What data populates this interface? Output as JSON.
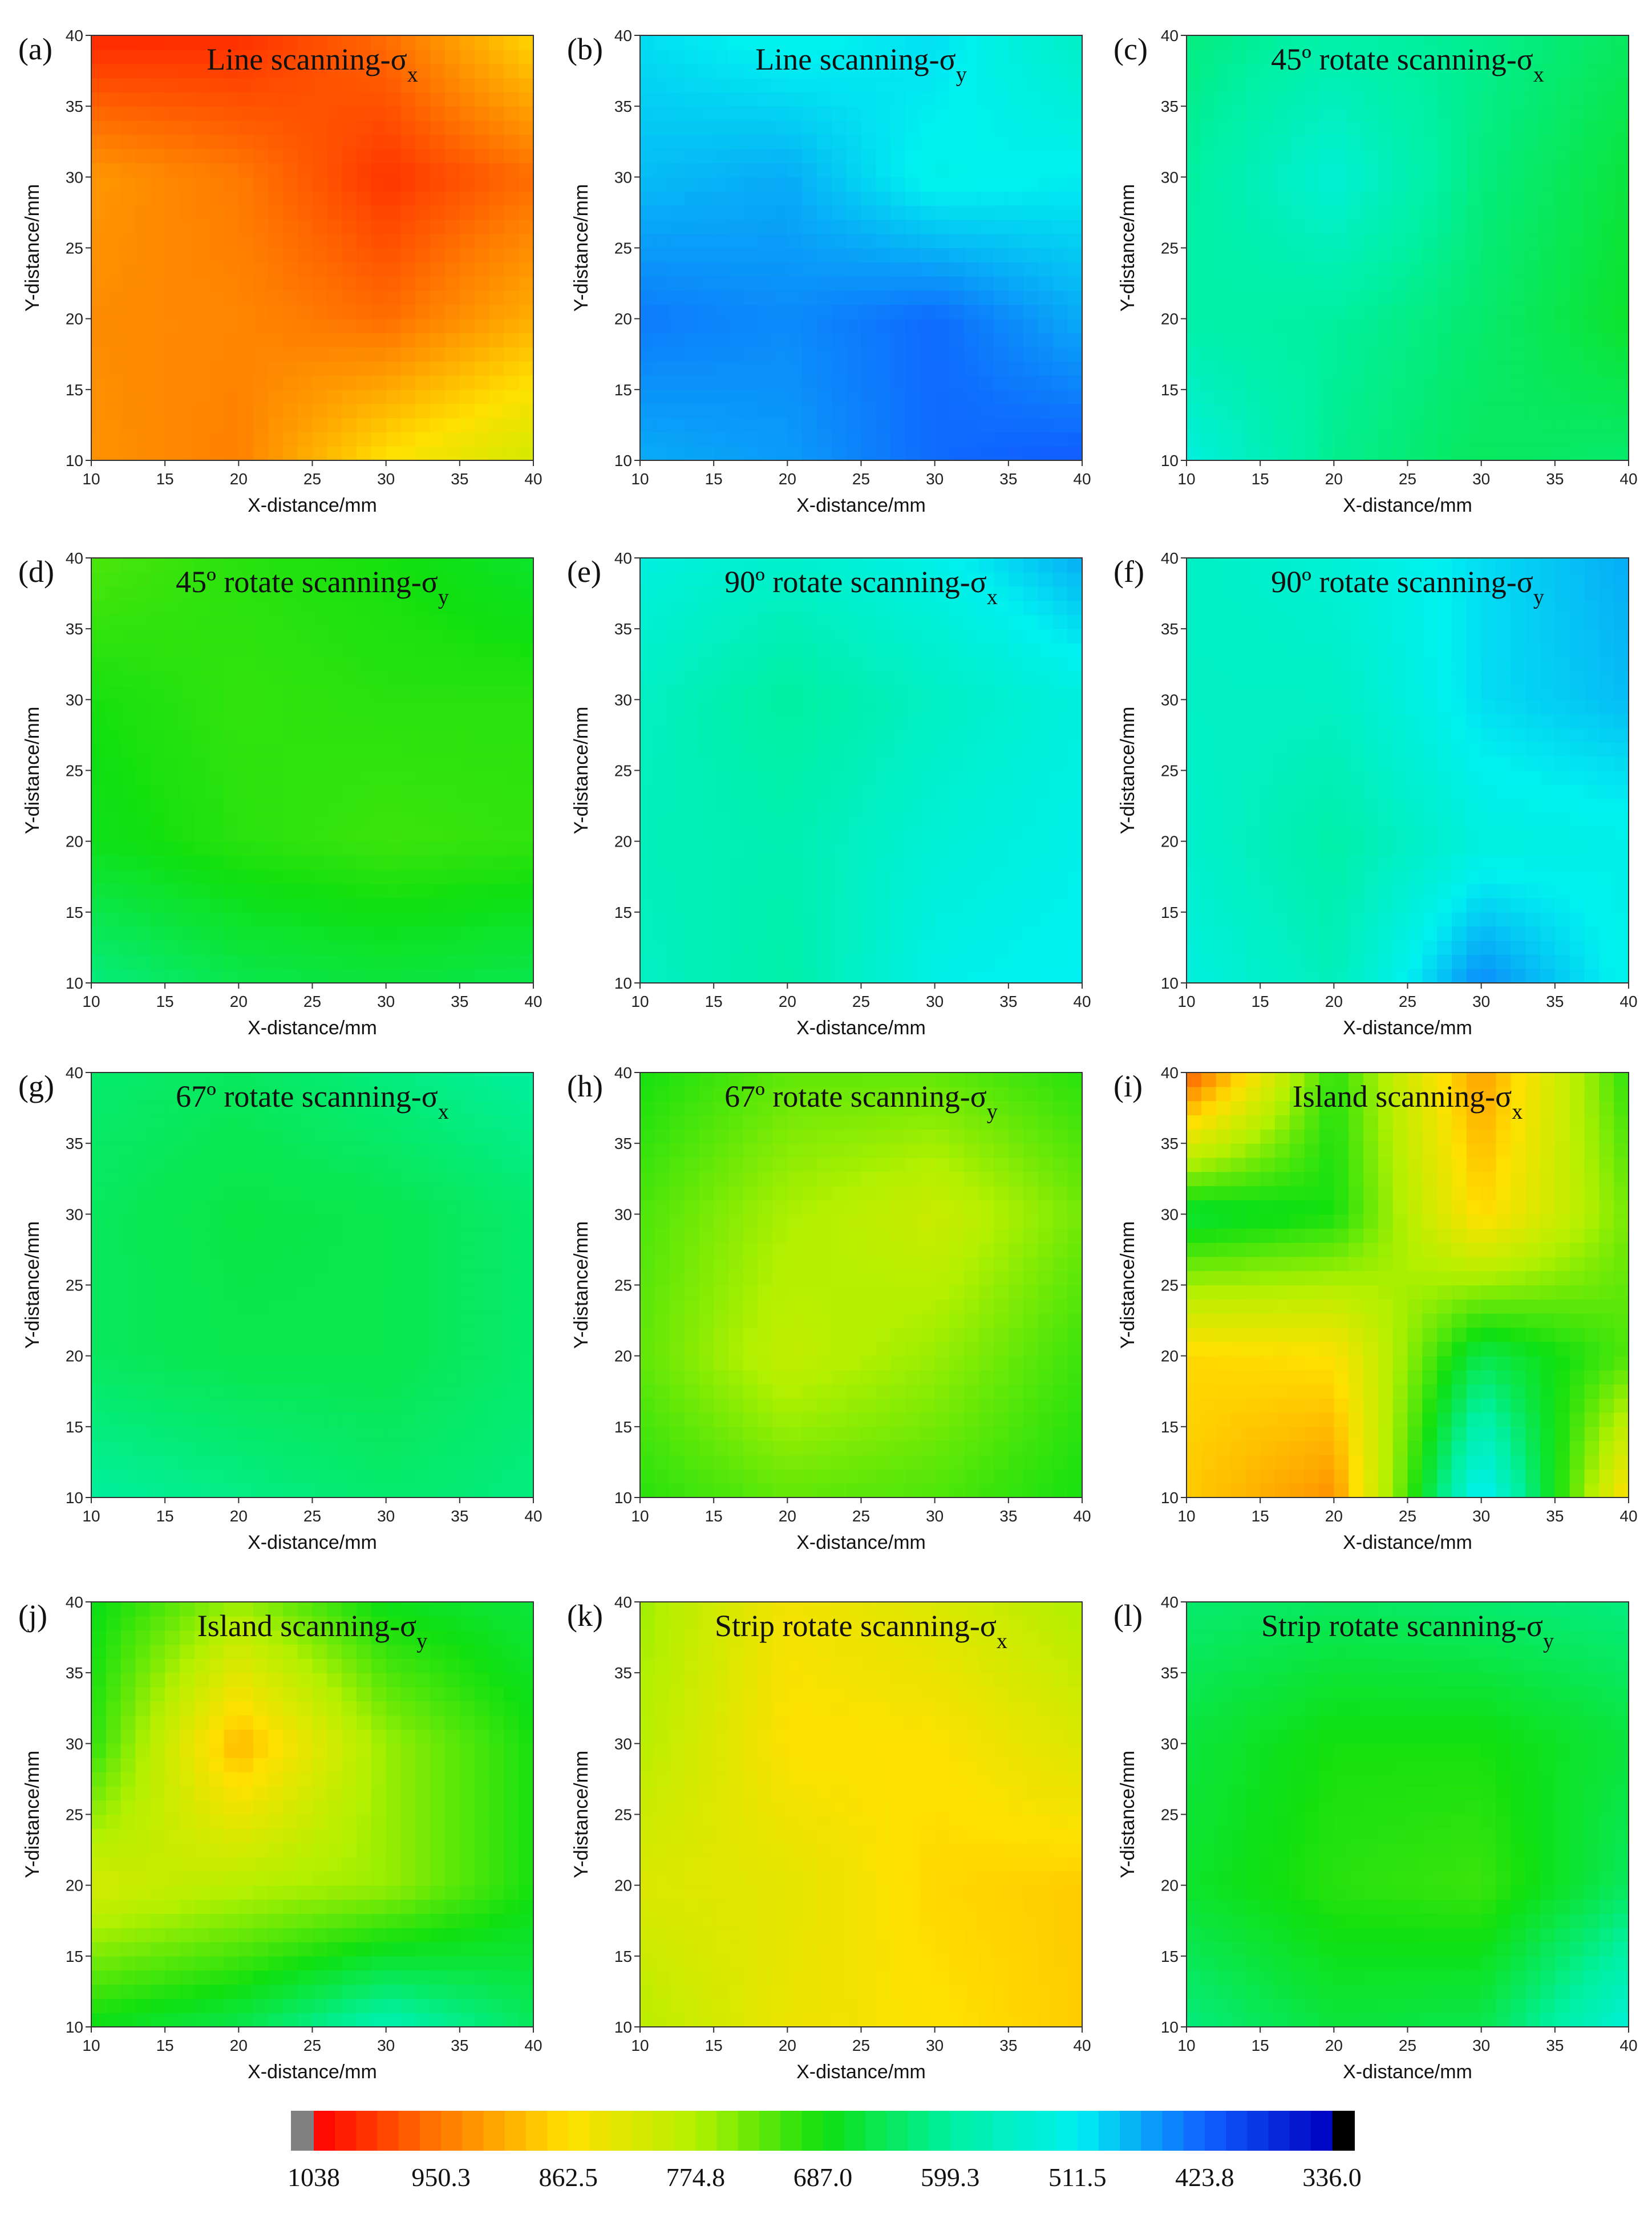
{
  "colormap": {
    "max": 1038,
    "min": 336,
    "stops": [
      [
        0.0,
        "#ff0000"
      ],
      [
        0.125,
        "#ff7a00"
      ],
      [
        0.25,
        "#ffe000"
      ],
      [
        0.375,
        "#b4f000"
      ],
      [
        0.5,
        "#10e010"
      ],
      [
        0.625,
        "#00f0a0"
      ],
      [
        0.75,
        "#00f0f0"
      ],
      [
        0.875,
        "#1060ff"
      ],
      [
        1.0,
        "#0000c0"
      ]
    ],
    "under_color": "#808080",
    "over_color": "#000000",
    "tick_labels": [
      "1038",
      "950.3",
      "862.5",
      "774.8",
      "687.0",
      "599.3",
      "511.5",
      "423.8",
      "336.0"
    ]
  },
  "chart_data": [
    {
      "id": "a",
      "type": "heatmap",
      "label": "(a)",
      "title": "Line scanning-σ",
      "sub": "x",
      "xlabel": "X-distance/mm",
      "ylabel": "Y-distance/mm",
      "x": [
        10,
        20,
        30,
        40
      ],
      "y": [
        10,
        20,
        30,
        40
      ],
      "xlim": [
        10,
        40
      ],
      "ylim": [
        10,
        40
      ],
      "xticks": [
        10,
        15,
        20,
        25,
        30,
        35,
        40
      ],
      "yticks": [
        10,
        15,
        20,
        25,
        30,
        35,
        40
      ],
      "z": [
        [
          930,
          945,
          860,
          810
        ],
        [
          935,
          940,
          960,
          905
        ],
        [
          925,
          950,
          1000,
          960
        ],
        [
          1010,
          1005,
          960,
          870
        ]
      ]
    },
    {
      "id": "b",
      "type": "heatmap",
      "label": "(b)",
      "title": "Line scanning-σ",
      "sub": "y",
      "xlabel": "X-distance/mm",
      "ylabel": "Y-distance/mm",
      "x": [
        10,
        20,
        30,
        40
      ],
      "y": [
        10,
        20,
        30,
        40
      ],
      "xlim": [
        10,
        40
      ],
      "ylim": [
        10,
        40
      ],
      "xticks": [
        10,
        15,
        20,
        25,
        30,
        35,
        40
      ],
      "yticks": [
        10,
        15,
        20,
        25,
        30,
        35,
        40
      ],
      "z": [
        [
          470,
          460,
          430,
          420
        ],
        [
          440,
          450,
          430,
          470
        ],
        [
          480,
          470,
          520,
          510
        ],
        [
          500,
          520,
          500,
          560
        ]
      ]
    },
    {
      "id": "c",
      "type": "heatmap",
      "label": "(c)",
      "title": "45º rotate scanning-σ",
      "sub": "x",
      "xlabel": "X-distance/mm",
      "ylabel": "Y-distance/mm",
      "x": [
        10,
        20,
        30,
        40
      ],
      "y": [
        10,
        20,
        30,
        40
      ],
      "xlim": [
        10,
        40
      ],
      "ylim": [
        10,
        40
      ],
      "xticks": [
        10,
        15,
        20,
        25,
        30,
        35,
        40
      ],
      "yticks": [
        10,
        15,
        20,
        25,
        30,
        35,
        40
      ],
      "z": [
        [
          530,
          610,
          640,
          630
        ],
        [
          590,
          600,
          630,
          670
        ],
        [
          600,
          540,
          620,
          660
        ],
        [
          620,
          590,
          610,
          640
        ]
      ]
    },
    {
      "id": "d",
      "type": "heatmap",
      "label": "(d)",
      "title": "45º rotate scanning-σ",
      "sub": "y",
      "xlabel": "X-distance/mm",
      "ylabel": "Y-distance/mm",
      "x": [
        10,
        20,
        30,
        40
      ],
      "y": [
        10,
        20,
        30,
        40
      ],
      "xlim": [
        10,
        40
      ],
      "ylim": [
        10,
        40
      ],
      "xticks": [
        10,
        15,
        20,
        25,
        30,
        35,
        40
      ],
      "yticks": [
        10,
        15,
        20,
        25,
        30,
        35,
        40
      ],
      "z": [
        [
          620,
          650,
          660,
          650
        ],
        [
          680,
          700,
          710,
          705
        ],
        [
          690,
          705,
          700,
          700
        ],
        [
          720,
          700,
          690,
          670
        ]
      ]
    },
    {
      "id": "e",
      "type": "heatmap",
      "label": "(e)",
      "title": "90º rotate scanning-σ",
      "sub": "x",
      "xlabel": "X-distance/mm",
      "ylabel": "Y-distance/mm",
      "x": [
        10,
        20,
        30,
        40
      ],
      "y": [
        10,
        20,
        30,
        40
      ],
      "xlim": [
        10,
        40
      ],
      "ylim": [
        10,
        40
      ],
      "xticks": [
        10,
        15,
        20,
        25,
        30,
        35,
        40
      ],
      "yticks": [
        10,
        15,
        20,
        25,
        30,
        35,
        40
      ],
      "z": [
        [
          560,
          590,
          520,
          510
        ],
        [
          570,
          580,
          540,
          520
        ],
        [
          560,
          600,
          560,
          530
        ],
        [
          530,
          550,
          520,
          470
        ]
      ]
    },
    {
      "id": "f",
      "type": "heatmap",
      "label": "(f)",
      "title": "90º rotate scanning-σ",
      "sub": "y",
      "xlabel": "X-distance/mm",
      "ylabel": "Y-distance/mm",
      "x": [
        10,
        20,
        30,
        40
      ],
      "y": [
        10,
        20,
        30,
        40
      ],
      "xlim": [
        10,
        40
      ],
      "ylim": [
        10,
        40
      ],
      "xticks": [
        10,
        15,
        20,
        25,
        30,
        35,
        40
      ],
      "yticks": [
        10,
        15,
        20,
        25,
        30,
        35,
        40
      ],
      "z": [
        [
          530,
          570,
          450,
          520
        ],
        [
          550,
          590,
          530,
          520
        ],
        [
          560,
          560,
          500,
          480
        ],
        [
          560,
          540,
          500,
          470
        ]
      ]
    },
    {
      "id": "g",
      "type": "heatmap",
      "label": "(g)",
      "title": "67º rotate scanning-σ",
      "sub": "x",
      "xlabel": "X-distance/mm",
      "ylabel": "Y-distance/mm",
      "x": [
        10,
        20,
        30,
        40
      ],
      "y": [
        10,
        20,
        30,
        40
      ],
      "xlim": [
        10,
        40
      ],
      "ylim": [
        10,
        40
      ],
      "xticks": [
        10,
        15,
        20,
        25,
        30,
        35,
        40
      ],
      "yticks": [
        10,
        15,
        20,
        25,
        30,
        35,
        40
      ],
      "z": [
        [
          600,
          615,
          630,
          620
        ],
        [
          640,
          650,
          650,
          630
        ],
        [
          640,
          655,
          650,
          630
        ],
        [
          630,
          640,
          620,
          600
        ]
      ]
    },
    {
      "id": "h",
      "type": "heatmap",
      "label": "(h)",
      "title": "67º rotate scanning-σ",
      "sub": "y",
      "xlabel": "X-distance/mm",
      "ylabel": "Y-distance/mm",
      "x": [
        10,
        20,
        30,
        40
      ],
      "y": [
        10,
        20,
        30,
        40
      ],
      "xlim": [
        10,
        40
      ],
      "ylim": [
        10,
        40
      ],
      "xticks": [
        10,
        15,
        20,
        25,
        30,
        35,
        40
      ],
      "yticks": [
        10,
        15,
        20,
        25,
        30,
        35,
        40
      ],
      "z": [
        [
          700,
          730,
          720,
          690
        ],
        [
          730,
          790,
          760,
          710
        ],
        [
          720,
          770,
          800,
          740
        ],
        [
          690,
          730,
          730,
          700
        ]
      ]
    },
    {
      "id": "i",
      "type": "heatmap",
      "label": "(i)",
      "title": "Island scanning-σ",
      "sub": "x",
      "xlabel": "X-distance/mm",
      "ylabel": "Y-distance/mm",
      "x": [
        10,
        20,
        30,
        40
      ],
      "y": [
        10,
        20,
        30,
        40
      ],
      "xlim": [
        10,
        40
      ],
      "ylim": [
        10,
        40
      ],
      "xticks": [
        10,
        15,
        20,
        25,
        30,
        35,
        40
      ],
      "yticks": [
        10,
        15,
        20,
        25,
        30,
        35,
        40
      ],
      "z": [
        [
          880,
          930,
          500,
          870
        ],
        [
          870,
          860,
          650,
          720
        ],
        [
          660,
          690,
          870,
          740
        ],
        [
          980,
          700,
          920,
          700
        ]
      ]
    },
    {
      "id": "j",
      "type": "heatmap",
      "label": "(j)",
      "title": "Island scanning-σ",
      "sub": "y",
      "xlabel": "X-distance/mm",
      "ylabel": "Y-distance/mm",
      "x": [
        10,
        20,
        30,
        40
      ],
      "y": [
        10,
        20,
        30,
        40
      ],
      "xlim": [
        10,
        40
      ],
      "ylim": [
        10,
        40
      ],
      "xticks": [
        10,
        15,
        20,
        25,
        30,
        35,
        40
      ],
      "yticks": [
        10,
        15,
        20,
        25,
        30,
        35,
        40
      ],
      "z": [
        [
          680,
          650,
          580,
          640
        ],
        [
          810,
          780,
          760,
          690
        ],
        [
          700,
          900,
          760,
          690
        ],
        [
          680,
          760,
          680,
          660
        ]
      ]
    },
    {
      "id": "k",
      "type": "heatmap",
      "label": "(k)",
      "title": "Strip rotate scanning-σ",
      "sub": "x",
      "xlabel": "X-distance/mm",
      "ylabel": "Y-distance/mm",
      "x": [
        10,
        20,
        30,
        40
      ],
      "y": [
        10,
        20,
        30,
        40
      ],
      "xlim": [
        10,
        40
      ],
      "ylim": [
        10,
        40
      ],
      "xticks": [
        10,
        15,
        20,
        25,
        30,
        35,
        40
      ],
      "yticks": [
        10,
        15,
        20,
        25,
        30,
        35,
        40
      ],
      "z": [
        [
          780,
          840,
          860,
          880
        ],
        [
          820,
          830,
          870,
          880
        ],
        [
          780,
          860,
          860,
          820
        ],
        [
          760,
          850,
          820,
          770
        ]
      ]
    },
    {
      "id": "l",
      "type": "heatmap",
      "label": "(l)",
      "title": "Strip rotate scanning-σ",
      "sub": "y",
      "xlabel": "X-distance/mm",
      "ylabel": "Y-distance/mm",
      "x": [
        10,
        20,
        30,
        40
      ],
      "y": [
        10,
        20,
        30,
        40
      ],
      "xlim": [
        10,
        40
      ],
      "ylim": [
        10,
        40
      ],
      "xticks": [
        10,
        15,
        20,
        25,
        30,
        35,
        40
      ],
      "yticks": [
        10,
        15,
        20,
        25,
        30,
        35,
        40
      ],
      "z": [
        [
          620,
          660,
          650,
          540
        ],
        [
          670,
          700,
          710,
          640
        ],
        [
          660,
          690,
          690,
          660
        ],
        [
          630,
          640,
          630,
          620
        ]
      ]
    }
  ]
}
